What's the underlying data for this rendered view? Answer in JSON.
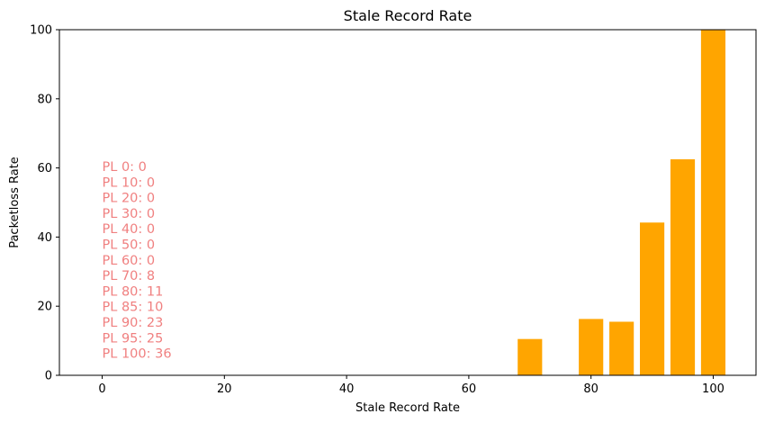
{
  "chart_data": {
    "type": "bar",
    "title": "Stale Record Rate",
    "xlabel": "Stale Record Rate",
    "ylabel": "Packetloss Rate",
    "xlim": [
      -7,
      107
    ],
    "ylim": [
      0,
      100
    ],
    "xticks": [
      0,
      20,
      40,
      60,
      80,
      100
    ],
    "yticks": [
      0,
      20,
      40,
      60,
      80,
      100
    ],
    "grid": false,
    "bar_width": 4,
    "bar_color": "#ffa500",
    "x": [
      0,
      10,
      20,
      30,
      40,
      50,
      60,
      70,
      80,
      85,
      90,
      95,
      100
    ],
    "values": [
      0,
      0,
      0,
      0,
      0,
      0,
      0,
      10.5,
      16.3,
      15.5,
      44.2,
      62.5,
      100
    ],
    "annotation_color": "#f08080",
    "annotations": [
      "PL 0: 0",
      "PL 10: 0",
      "PL 20: 0",
      "PL 30: 0",
      "PL 40: 0",
      "PL 50: 0",
      "PL 60: 0",
      "PL 70: 8",
      "PL 80: 11",
      "PL 85: 10",
      "PL 90: 23",
      "PL 95: 25",
      "PL 100: 36"
    ]
  }
}
